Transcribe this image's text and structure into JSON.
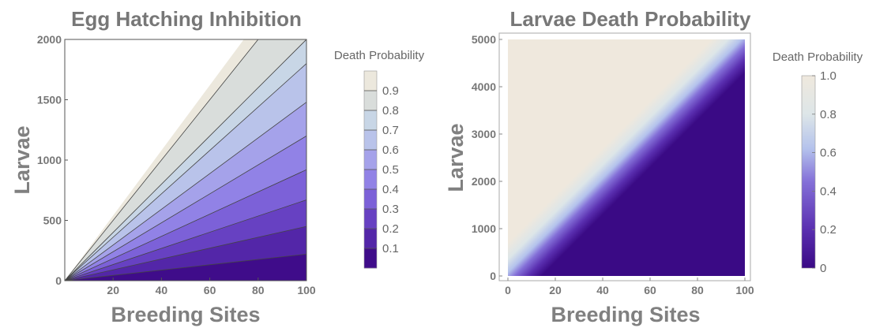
{
  "chart_data": [
    {
      "type": "contour",
      "title": "Egg Hatching Inhibition",
      "xlabel": "Breeding Sites",
      "ylabel": "Larvae",
      "xlim": [
        0,
        100
      ],
      "ylim": [
        0,
        2000
      ],
      "x_ticks": [
        "20",
        "40",
        "60",
        "80",
        "100"
      ],
      "y_ticks": [
        "0",
        "500",
        "1000",
        "1500",
        "2000"
      ],
      "contour_levels": [
        0.1,
        0.2,
        0.3,
        0.4,
        0.5,
        0.6,
        0.7,
        0.8,
        0.9
      ],
      "contour_slopes": [
        2.2,
        4.5,
        6.7,
        9.2,
        12,
        14.8,
        18,
        20,
        25
      ],
      "boundary_slope": 27,
      "legend": {
        "title": "Death Probability",
        "labels": [
          "0.1",
          "0.2",
          "0.3",
          "0.4",
          "0.5",
          "0.6",
          "0.7",
          "0.8",
          "0.9"
        ]
      },
      "colors": [
        "#3f0c8a",
        "#5326a8",
        "#6741c2",
        "#7c61d8",
        "#9182e6",
        "#a5a2ea",
        "#b9c3ea",
        "#c8d6e6",
        "#d9dddb",
        "#ece8dd"
      ]
    },
    {
      "type": "heatmap",
      "title": "Larvae Death Probability",
      "xlabel": "Breeding Sites",
      "ylabel": "Larvae",
      "xlim": [
        0,
        100
      ],
      "ylim": [
        0,
        5000
      ],
      "x_ticks": [
        "0",
        "20",
        "40",
        "60",
        "80",
        "100"
      ],
      "y_ticks": [
        "0",
        "1000",
        "2000",
        "3000",
        "4000",
        "5000"
      ],
      "transition_slope": 50,
      "legend": {
        "title": "Death Probability",
        "labels": [
          "0",
          "0.2",
          "0.4",
          "0.6",
          "0.8",
          "1.0"
        ]
      },
      "colors": [
        "#3a0a85",
        "#5a2fb0",
        "#8470d8",
        "#b4c2ec",
        "#dde6e8",
        "#efe8dd"
      ]
    }
  ]
}
